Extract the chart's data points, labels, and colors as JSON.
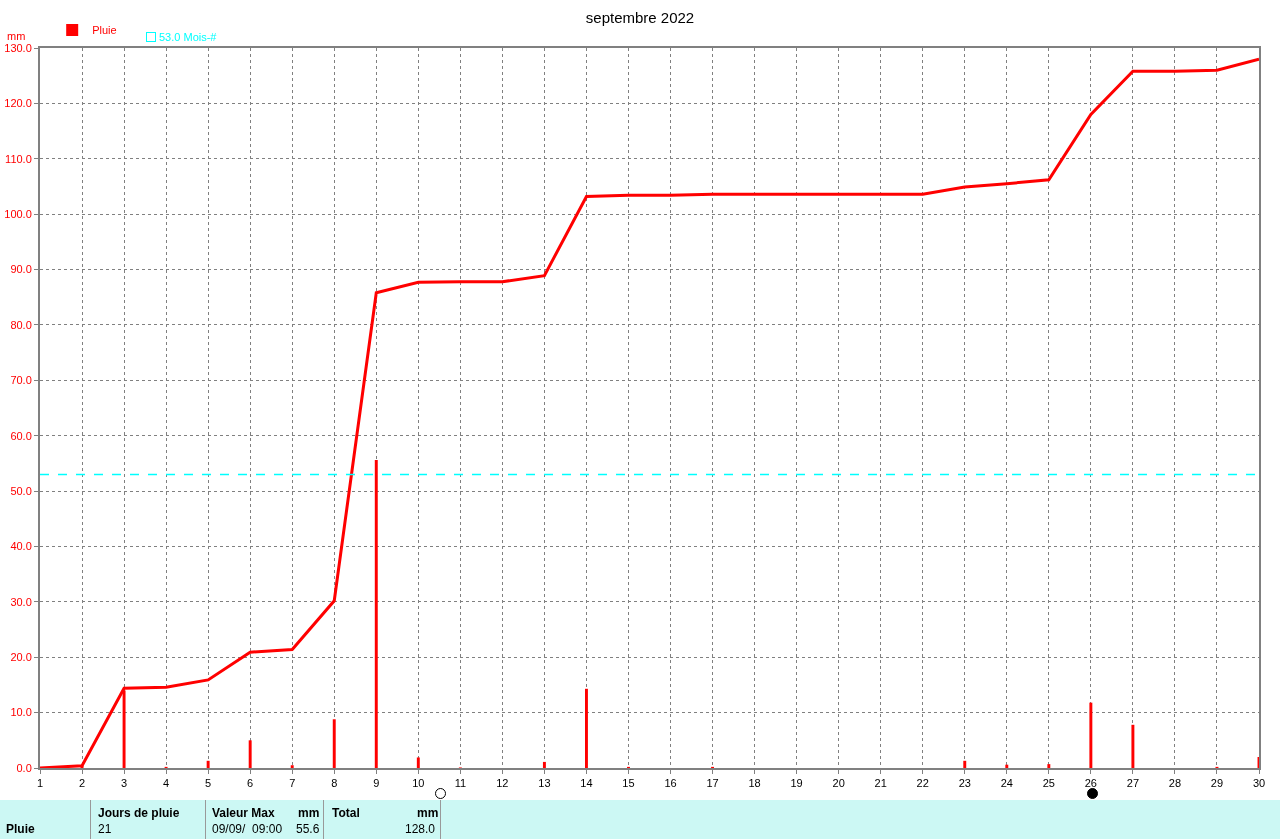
{
  "chart_data": {
    "type": "bar",
    "title": "septembre 2022",
    "ylabel": "mm",
    "x": [
      1,
      2,
      3,
      4,
      5,
      6,
      7,
      8,
      9,
      10,
      11,
      12,
      13,
      14,
      15,
      16,
      17,
      18,
      19,
      20,
      21,
      22,
      23,
      24,
      25,
      26,
      27,
      28,
      29,
      30
    ],
    "series": [
      {
        "name": "Pluie",
        "color": "#ff0000",
        "values": [
          null,
          0.4,
          14.0,
          0.2,
          1.3,
          5.0,
          0.5,
          8.8,
          55.6,
          1.9,
          0.1,
          null,
          1.1,
          14.3,
          0.2,
          null,
          0.2,
          null,
          null,
          null,
          null,
          null,
          1.3,
          0.6,
          0.7,
          11.8,
          7.8,
          null,
          0.2,
          2.0
        ]
      },
      {
        "type": "line",
        "color": "#ff0000",
        "values": [
          0,
          0.4,
          14.4,
          14.6,
          15.9,
          20.9,
          21.4,
          30.2,
          85.8,
          87.7,
          87.8,
          87.8,
          88.9,
          103.2,
          103.4,
          103.4,
          103.6,
          103.6,
          103.6,
          103.6,
          103.6,
          103.6,
          104.9,
          105.5,
          106.2,
          118.0,
          125.8,
          125.8,
          126.0,
          128.0
        ]
      }
    ],
    "xlim": [
      1,
      30
    ],
    "xticks": [
      1,
      2,
      3,
      4,
      5,
      6,
      7,
      8,
      9,
      10,
      11,
      12,
      13,
      14,
      15,
      16,
      17,
      18,
      19,
      20,
      21,
      22,
      23,
      24,
      25,
      26,
      27,
      28,
      29,
      30
    ],
    "ylim": [
      0,
      130
    ],
    "yticks": [
      {
        "value": 0,
        "label": "0.0"
      },
      {
        "value": 10,
        "label": "10.0"
      },
      {
        "value": 20,
        "label": "20.0"
      },
      {
        "value": 30,
        "label": "30.0"
      },
      {
        "value": 40,
        "label": "40.0"
      },
      {
        "value": 50,
        "label": "50.0"
      },
      {
        "value": 60,
        "label": "60.0"
      },
      {
        "value": 70,
        "label": "70.0"
      },
      {
        "value": 80,
        "label": "80.0"
      },
      {
        "value": 90,
        "label": "90.0"
      },
      {
        "value": 100,
        "label": "100.0"
      },
      {
        "value": 110,
        "label": "110.0"
      },
      {
        "value": 120,
        "label": "120.0"
      },
      {
        "value": 130,
        "label": "130.0"
      }
    ],
    "ref_lines": [
      {
        "axis": "y",
        "value": 53,
        "label": "53.0 Mois-#",
        "color": "#00ffff",
        "line_style": "dashed"
      }
    ],
    "grid": true,
    "legend": "top left",
    "line_style": "solid",
    "marker": "none",
    "annotations": [
      "Pluie",
      "Jours de pluie",
      "21",
      "Valeur Max",
      "mm",
      "09/09/  09:00",
      "55.6",
      "Total",
      "mm",
      "128.0"
    ]
  }
}
